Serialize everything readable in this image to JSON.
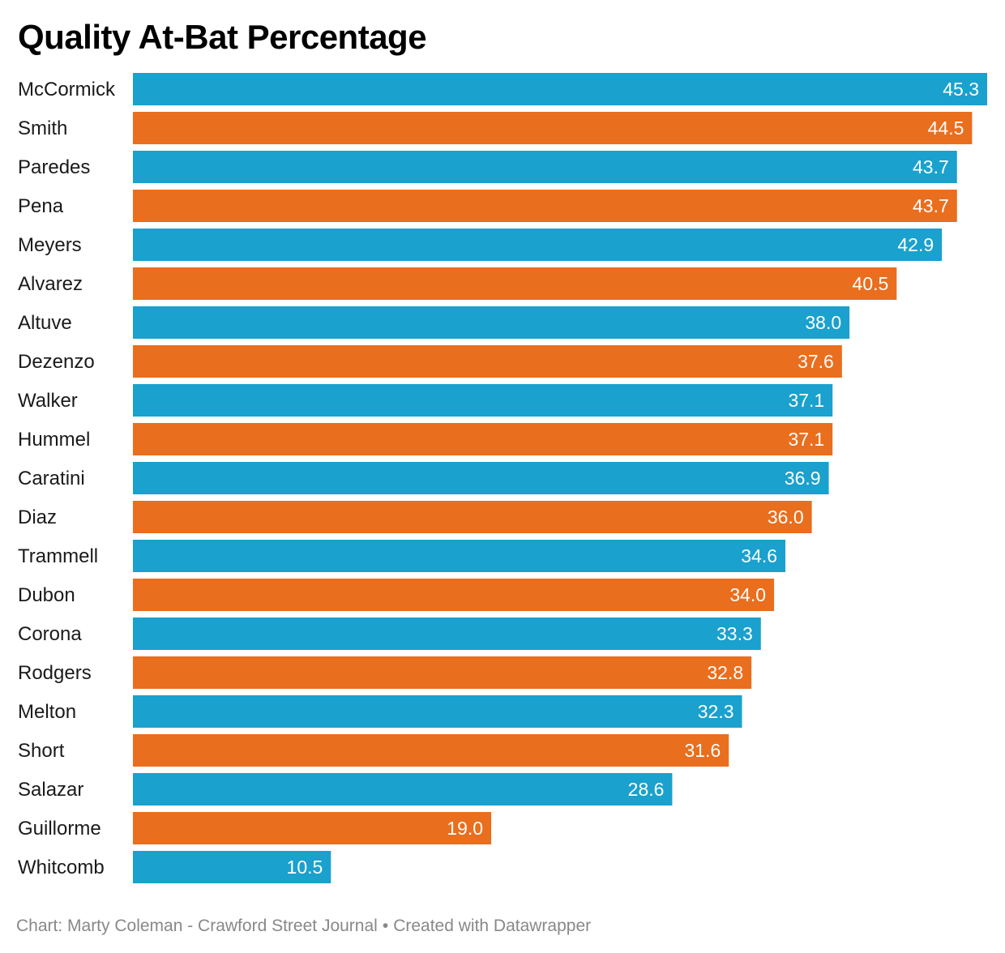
{
  "chart_data": {
    "type": "bar",
    "orientation": "horizontal",
    "title": "Quality At-Bat Percentage",
    "categories": [
      "McCormick",
      "Smith",
      "Paredes",
      "Pena",
      "Meyers",
      "Alvarez",
      "Altuve",
      "Dezenzo",
      "Walker",
      "Hummel",
      "Caratini",
      "Diaz",
      "Trammell",
      "Dubon",
      "Corona",
      "Rodgers",
      "Melton",
      "Short",
      "Salazar",
      "Guillorme",
      "Whitcomb"
    ],
    "values": [
      45.3,
      44.5,
      43.7,
      43.7,
      42.9,
      40.5,
      38.0,
      37.6,
      37.1,
      37.1,
      36.9,
      36.0,
      34.6,
      34.0,
      33.3,
      32.8,
      32.3,
      31.6,
      28.6,
      19.0,
      10.5
    ],
    "value_labels": [
      "45.3",
      "44.5",
      "43.7",
      "43.7",
      "42.9",
      "40.5",
      "38.0",
      "37.6",
      "37.1",
      "37.1",
      "36.9",
      "36.0",
      "34.6",
      "34.0",
      "33.3",
      "32.8",
      "32.3",
      "31.6",
      "28.6",
      "19.0",
      "10.5"
    ],
    "xlim": [
      0,
      45.3
    ],
    "grid": false,
    "bar_colors": [
      "#1aa1cd",
      "#e96e1e"
    ],
    "label_color": "#ffffff"
  },
  "footer": {
    "chart_credit": "Chart: Marty Coleman - Crawford Street Journal",
    "separator": "•",
    "tool_credit": "Created with Datawrapper"
  }
}
